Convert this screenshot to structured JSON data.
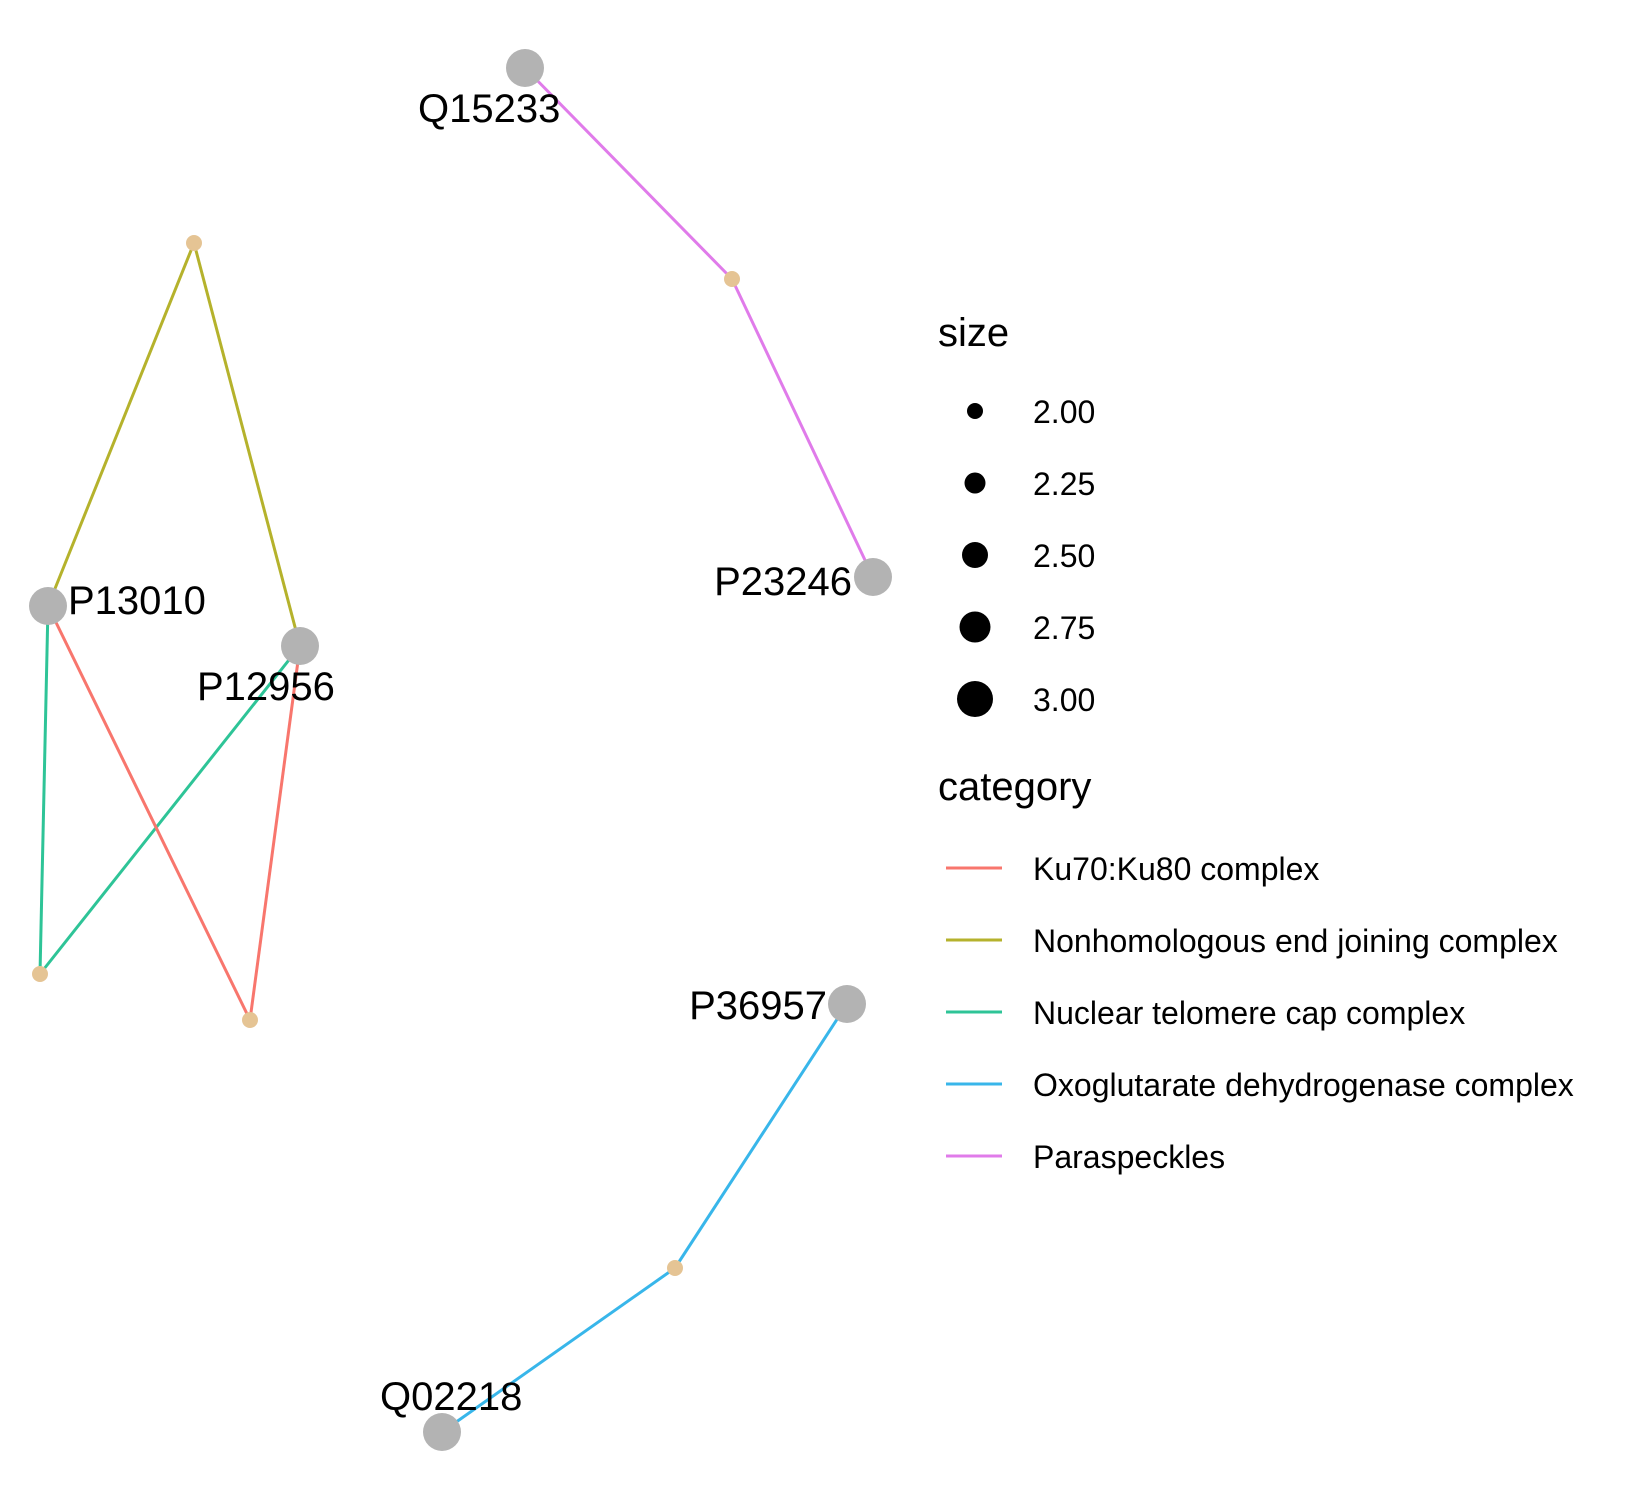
{
  "colors": {
    "protein_node": "#b3b3b3",
    "category_node": "#e5c494",
    "legend_key": "#000000",
    "background": "#ffffff"
  },
  "proteins": [
    {
      "id": "Q15233"
    },
    {
      "id": "P23246"
    },
    {
      "id": "P13010"
    },
    {
      "id": "P12956"
    },
    {
      "id": "P36957"
    },
    {
      "id": "Q02218"
    }
  ],
  "categories": [
    {
      "id": "ku70ku80",
      "name": "Ku70:Ku80 complex",
      "color": "#f8766d"
    },
    {
      "id": "nhej",
      "name": "Nonhomologous end joining complex",
      "color": "#b5b22c"
    },
    {
      "id": "telomere",
      "name": "Nuclear telomere cap complex",
      "color": "#2ec497"
    },
    {
      "id": "oxoglutarate",
      "name": "Oxoglutarate dehydrogenase complex",
      "color": "#38b6ea"
    },
    {
      "id": "paraspeckles",
      "name": "Paraspeckles",
      "color": "#e07bea"
    }
  ],
  "edges": [
    {
      "protein": "Q15233",
      "category": "paraspeckles"
    },
    {
      "protein": "P23246",
      "category": "paraspeckles"
    },
    {
      "protein": "P13010",
      "category": "nhej"
    },
    {
      "protein": "P12956",
      "category": "nhej"
    },
    {
      "protein": "P13010",
      "category": "telomere"
    },
    {
      "protein": "P12956",
      "category": "telomere"
    },
    {
      "protein": "P13010",
      "category": "ku70ku80"
    },
    {
      "protein": "P12956",
      "category": "ku70ku80"
    },
    {
      "protein": "P36957",
      "category": "oxoglutarate"
    },
    {
      "protein": "Q02218",
      "category": "oxoglutarate"
    }
  ],
  "legend": {
    "size_title": "size",
    "size_entries": [
      {
        "label": "2.00",
        "value": 2.0
      },
      {
        "label": "2.25",
        "value": 2.25
      },
      {
        "label": "2.50",
        "value": 2.5
      },
      {
        "label": "2.75",
        "value": 2.75
      },
      {
        "label": "3.00",
        "value": 3.0
      }
    ],
    "category_title": "category"
  }
}
